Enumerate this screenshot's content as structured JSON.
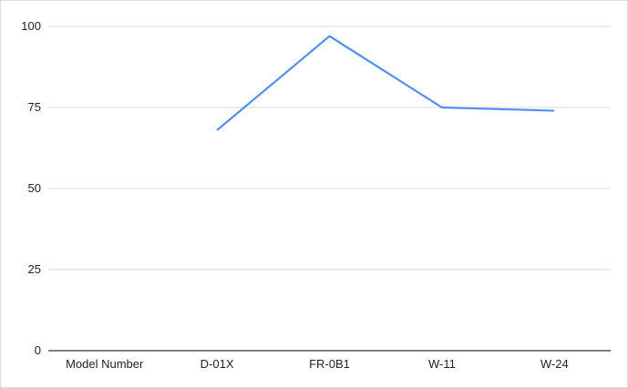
{
  "chart_data": {
    "type": "line",
    "categories": [
      "Model Number",
      "D-01X",
      "FR-0B1",
      "W-11",
      "W-24"
    ],
    "series": [
      {
        "values": [
          null,
          68,
          97,
          75,
          74
        ],
        "color": "#4f8ff0"
      }
    ],
    "title": "",
    "xlabel": "",
    "ylabel": "",
    "ylim": [
      0,
      100
    ],
    "yticks": [
      0,
      25,
      50,
      75,
      100
    ],
    "grid": true,
    "legend": "none"
  }
}
